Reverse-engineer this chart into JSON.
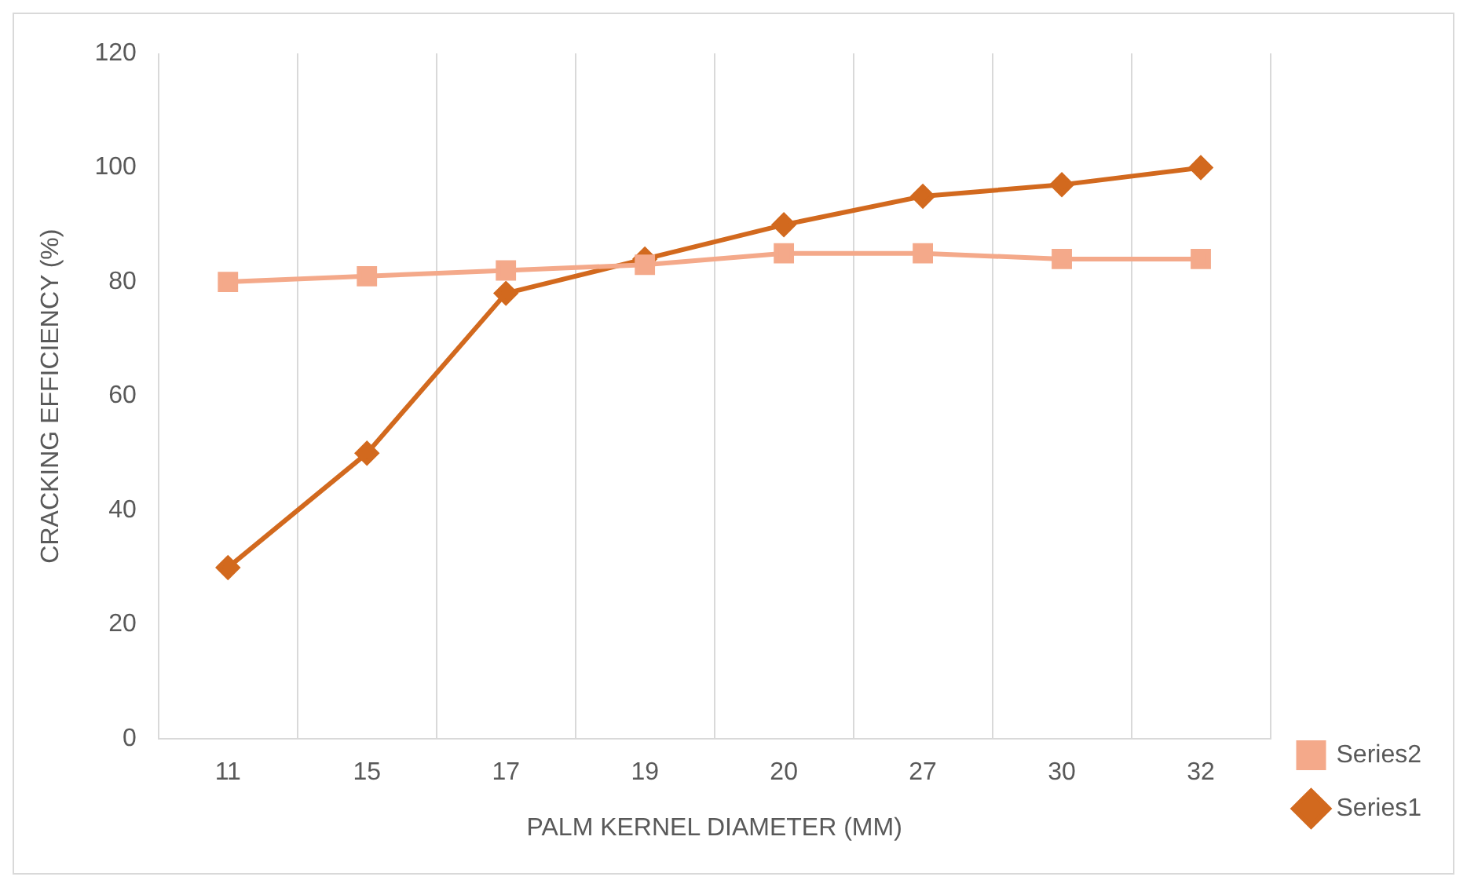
{
  "chart_data": {
    "type": "line",
    "xlabel": "PALM KERNEL DIAMETER (MM)",
    "ylabel": "CRACKING EFFICIENCY (%)",
    "categories": [
      "11",
      "15",
      "17",
      "19",
      "20",
      "27",
      "30",
      "32"
    ],
    "series": [
      {
        "name": "Series1",
        "color": "#d2691e",
        "marker": "diamond",
        "values": [
          30,
          50,
          78,
          84,
          90,
          95,
          97,
          100
        ]
      },
      {
        "name": "Series2",
        "color": "#f4a98a",
        "marker": "square",
        "values": [
          80,
          81,
          82,
          83,
          85,
          85,
          84,
          84
        ]
      }
    ],
    "ylim": [
      0,
      120
    ],
    "yticks": [
      0,
      20,
      40,
      60,
      80,
      100,
      120
    ],
    "grid": "x",
    "legend": "right",
    "line_style": "solid"
  }
}
